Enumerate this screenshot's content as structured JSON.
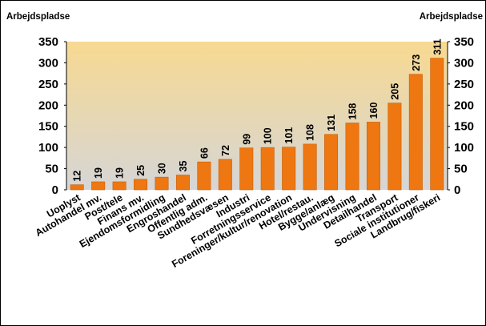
{
  "chart_data": {
    "type": "bar",
    "ylabel_left": "Arbejdspladse",
    "ylabel_right": "Arbejdspladse",
    "ylim": [
      0,
      350
    ],
    "yticks": [
      0,
      50,
      100,
      150,
      200,
      250,
      300,
      350
    ],
    "categories": [
      "Uoplyst",
      "Autohandel mv.",
      "Post/tele",
      "Finans mv.",
      "Ejendomsformidling",
      "Engroshandel",
      "Offentlig adm.",
      "Sundhedsvæsen",
      "Industri",
      "Forretningsservice",
      "Foreninger/kultur/renovation",
      "Hotel/restau.",
      "Bygge/anlæg",
      "Undervisning",
      "Detailhandel",
      "Transport",
      "Sociale institutioner",
      "Landbrug/fiskeri"
    ],
    "values": [
      12,
      19,
      19,
      25,
      30,
      35,
      66,
      72,
      99,
      100,
      101,
      108,
      131,
      158,
      160,
      205,
      273,
      311
    ],
    "grid": false,
    "legend": "none",
    "colors": {
      "bar": "#ee7711",
      "bar_edge": "#c8600a",
      "bg_top": "#f7d991",
      "bg_bottom": "#d6d6d6"
    }
  }
}
